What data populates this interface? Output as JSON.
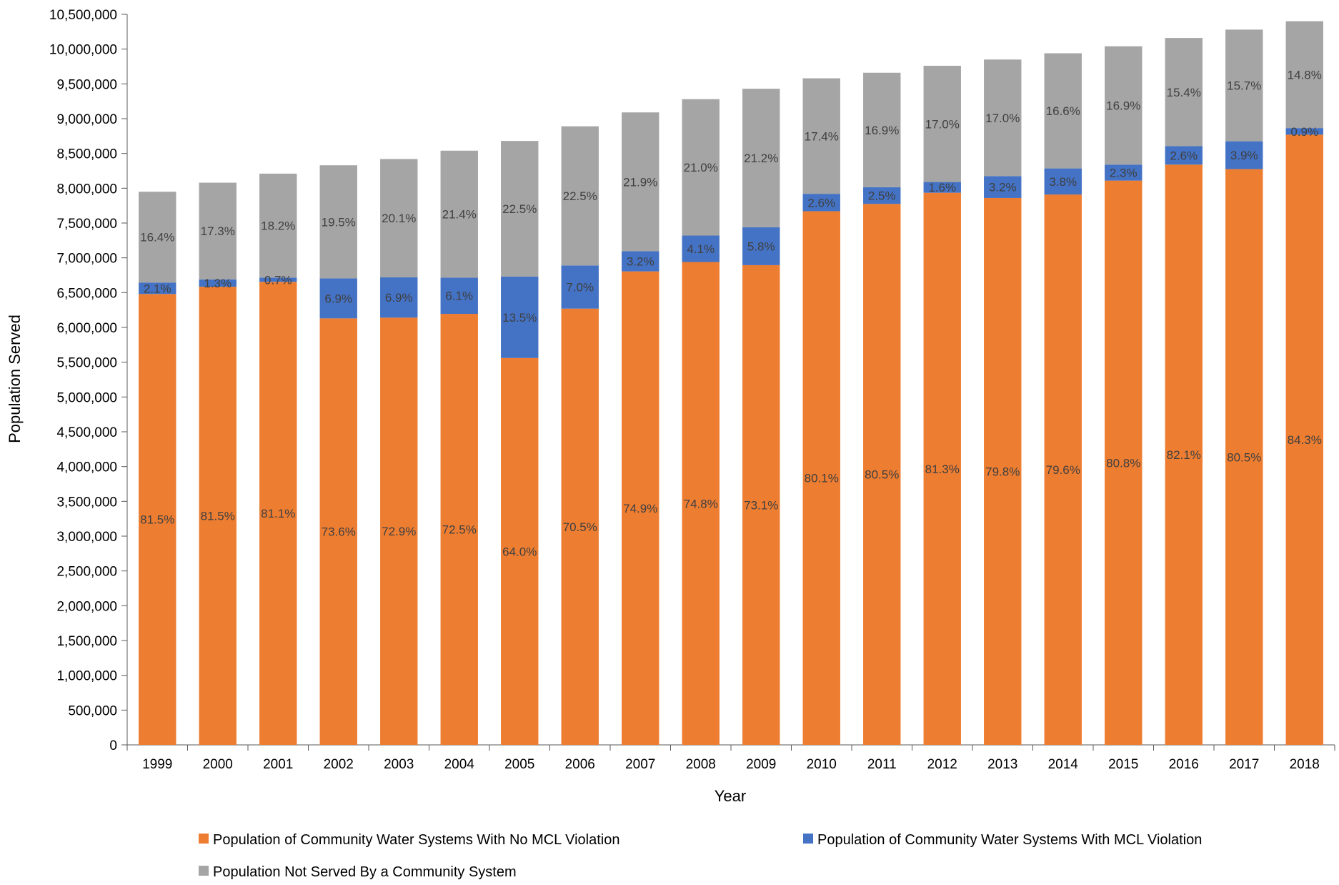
{
  "chart_data": {
    "type": "bar",
    "stacked": true,
    "xlabel": "Year",
    "ylabel": "Population Served",
    "ylim": [
      0,
      10500000
    ],
    "ytick_step": 500000,
    "grid": "horizontal-none",
    "legend_position": "bottom",
    "categories": [
      "1999",
      "2000",
      "2001",
      "2002",
      "2003",
      "2004",
      "2005",
      "2006",
      "2007",
      "2008",
      "2009",
      "2010",
      "2011",
      "2012",
      "2013",
      "2014",
      "2015",
      "2016",
      "2017",
      "2018"
    ],
    "totals": [
      7950000,
      8080000,
      8210000,
      8330000,
      8420000,
      8540000,
      8680000,
      8890000,
      9090000,
      9280000,
      9430000,
      9580000,
      9660000,
      9760000,
      9850000,
      9940000,
      10040000,
      10160000,
      10280000,
      10400000
    ],
    "series": [
      {
        "name": "Population of Community Water Systems With No MCL Violation",
        "color": "#ED7D31",
        "values": [
          6480000,
          6585000,
          6655000,
          6130000,
          6140000,
          6195000,
          5560000,
          6270000,
          6805000,
          6940000,
          6895000,
          7670000,
          7775000,
          7935000,
          7860000,
          7910000,
          8110000,
          8340000,
          8275000,
          8770000
        ],
        "labels": [
          "81.5%",
          "81.5%",
          "81.1%",
          "73.6%",
          "72.9%",
          "72.5%",
          "64.0%",
          "70.5%",
          "74.9%",
          "74.8%",
          "73.1%",
          "80.1%",
          "80.5%",
          "81.3%",
          "79.8%",
          "79.6%",
          "80.8%",
          "82.1%",
          "80.5%",
          "84.3%"
        ]
      },
      {
        "name": "Population of Community Water Systems With MCL Violation",
        "color": "#4472C4",
        "values": [
          165000,
          105000,
          60000,
          575000,
          580000,
          520000,
          1170000,
          620000,
          290000,
          380000,
          545000,
          250000,
          240000,
          155000,
          315000,
          375000,
          230000,
          265000,
          400000,
          95000
        ],
        "labels": [
          "2.1%",
          "1.3%",
          "0.7%",
          "6.9%",
          "6.9%",
          "6.1%",
          "13.5%",
          "7.0%",
          "3.2%",
          "4.1%",
          "5.8%",
          "2.6%",
          "2.5%",
          "1.6%",
          "3.2%",
          "3.8%",
          "2.3%",
          "2.6%",
          "3.9%",
          "0.9%"
        ]
      },
      {
        "name": "Population Not Served By a Community System",
        "color": "#A5A5A5",
        "values": [
          1305000,
          1390000,
          1495000,
          1625000,
          1700000,
          1825000,
          1950000,
          2000000,
          1995000,
          1960000,
          1990000,
          1660000,
          1645000,
          1670000,
          1675000,
          1655000,
          1700000,
          1555000,
          1605000,
          1535000
        ],
        "labels": [
          "16.4%",
          "17.3%",
          "18.2%",
          "19.5%",
          "20.1%",
          "21.4%",
          "22.5%",
          "22.5%",
          "21.9%",
          "21.0%",
          "21.2%",
          "17.4%",
          "16.9%",
          "17.0%",
          "17.0%",
          "16.6%",
          "16.9%",
          "15.4%",
          "15.7%",
          "14.8%"
        ]
      }
    ]
  }
}
